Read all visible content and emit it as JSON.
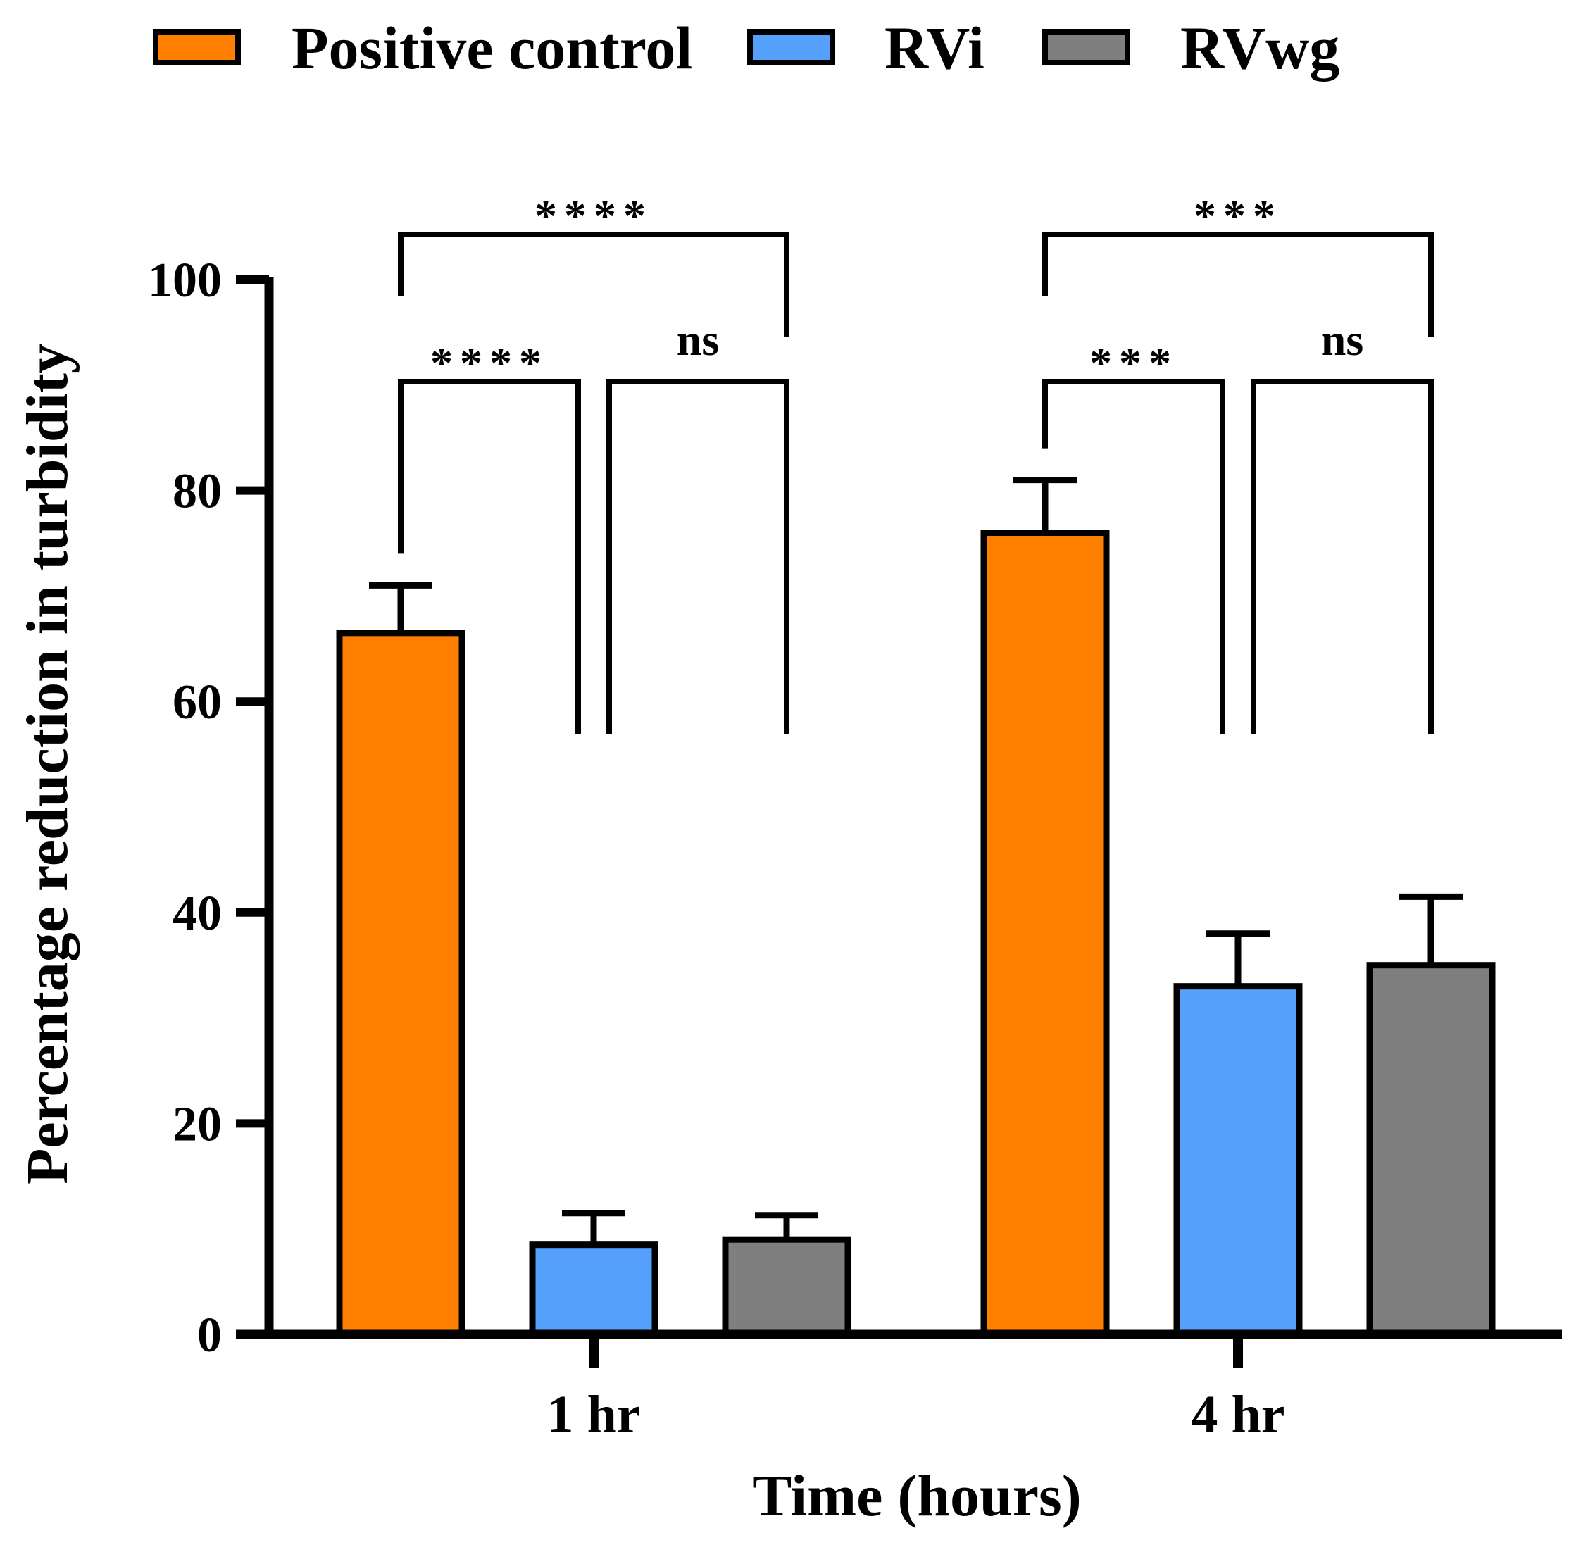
{
  "chart_data": {
    "type": "bar",
    "title": "",
    "xlabel": "Time (hours)",
    "ylabel": "Percentage reduction in turbidity",
    "ylim": [
      0,
      100
    ],
    "yticks": [
      "0",
      "20",
      "40",
      "60",
      "80",
      "100"
    ],
    "categories": [
      "1 hr",
      "4 hr"
    ],
    "legend_position": "top",
    "grid": false,
    "series": [
      {
        "name": "Positive control",
        "color": "#ff7f00",
        "values": [
          66.5,
          76.0
        ],
        "errors": [
          4.5,
          5.0
        ]
      },
      {
        "name": "RVi",
        "color": "#55a0fa",
        "values": [
          8.5,
          33.0
        ],
        "errors": [
          3.0,
          5.0
        ]
      },
      {
        "name": "RVwg",
        "color": "#7f7f7f",
        "values": [
          9.0,
          35.0
        ],
        "errors": [
          2.3,
          6.5
        ]
      }
    ],
    "significance": [
      {
        "category": "1 hr",
        "from": "Positive control",
        "to": "RVwg",
        "label": "****",
        "level": "top"
      },
      {
        "category": "1 hr",
        "from": "Positive control",
        "to": "RVi",
        "label": "****",
        "level": "lower"
      },
      {
        "category": "1 hr",
        "from": "RVi",
        "to": "RVwg",
        "label": "ns",
        "level": "lower"
      },
      {
        "category": "4 hr",
        "from": "Positive control",
        "to": "RVwg",
        "label": "***",
        "level": "top"
      },
      {
        "category": "4 hr",
        "from": "Positive control",
        "to": "RVi",
        "label": "***",
        "level": "lower"
      },
      {
        "category": "4 hr",
        "from": "RVi",
        "to": "RVwg",
        "label": "ns",
        "level": "lower"
      }
    ]
  }
}
